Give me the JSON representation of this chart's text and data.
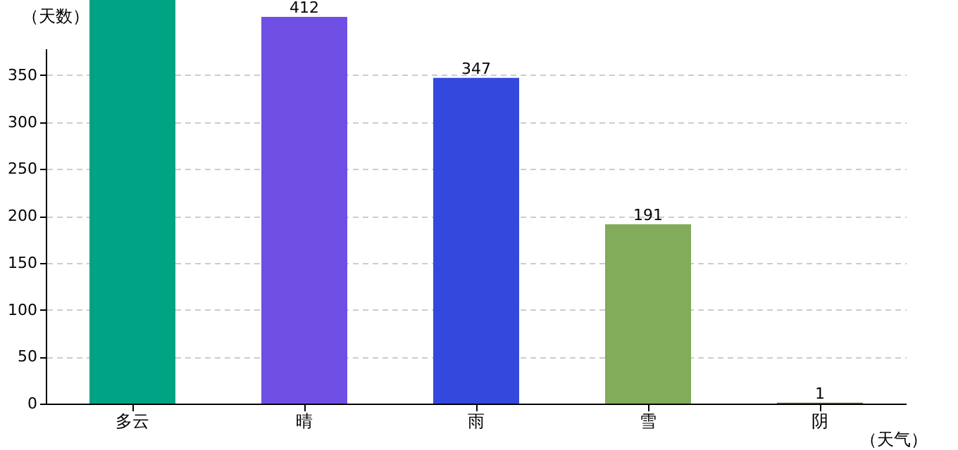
{
  "chart_data": {
    "type": "bar",
    "xlabel": "（天气）",
    "ylabel": "（天数）",
    "categories": [
      "多云",
      "晴",
      "雨",
      "雪",
      "阴"
    ],
    "values": [
      430,
      412,
      347,
      191,
      1
    ],
    "value_labels": [
      null,
      "412",
      "347",
      "191",
      "1"
    ],
    "colors": [
      "#00a383",
      "#6f4fe3",
      "#3349dd",
      "#82ab5a",
      "#556b2f"
    ],
    "ylim": [
      0,
      430
    ],
    "yticks": [
      0,
      50,
      100,
      150,
      200,
      250,
      300,
      350
    ],
    "grid": "y"
  }
}
